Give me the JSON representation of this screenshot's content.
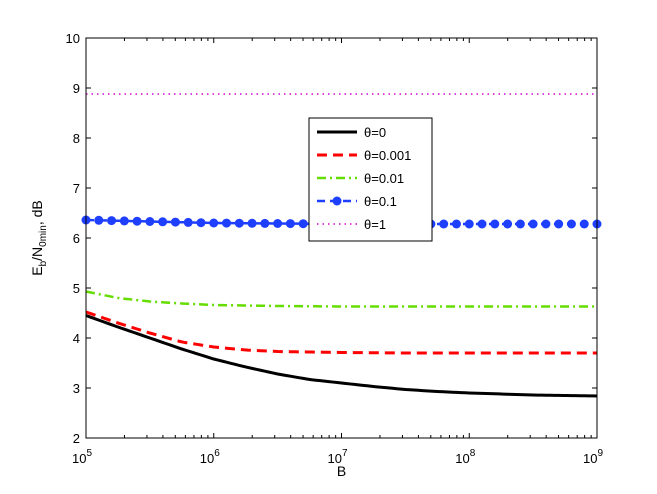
{
  "chart_data": {
    "type": "line",
    "xlabel": "B",
    "ylabel_main": "E",
    "ylabel_sub1": "b",
    "ylabel_mid": "/N",
    "ylabel_sub2": "0min",
    "ylabel_tail": ", dB",
    "xscale": "log",
    "xlim": [
      100000,
      1000000000
    ],
    "ylim": [
      2,
      10
    ],
    "x_ticks": [
      {
        "base": "10",
        "exp": "5"
      },
      {
        "base": "10",
        "exp": "6"
      },
      {
        "base": "10",
        "exp": "7"
      },
      {
        "base": "10",
        "exp": "8"
      },
      {
        "base": "10",
        "exp": "9"
      }
    ],
    "y_ticks": [
      "2",
      "3",
      "4",
      "5",
      "6",
      "7",
      "8",
      "9",
      "10"
    ],
    "grid": false,
    "legend_position": "center",
    "series": [
      {
        "name": "θ=0",
        "color": "#000000",
        "style": "solid",
        "x": [
          100000,
          177828,
          316228,
          562341,
          1000000,
          1778279,
          3162278,
          5623413,
          10000000,
          17782794,
          31622777,
          56234133,
          100000000,
          177827941,
          316227766,
          562341325,
          1000000000
        ],
        "y": [
          4.45,
          4.22,
          4.0,
          3.78,
          3.58,
          3.42,
          3.28,
          3.17,
          3.1,
          3.03,
          2.97,
          2.93,
          2.9,
          2.88,
          2.86,
          2.85,
          2.84
        ]
      },
      {
        "name": "θ=0.001",
        "color": "#ff0000",
        "style": "dashed",
        "x": [
          100000,
          177828,
          316228,
          562341,
          1000000,
          1778279,
          3162278,
          5623413,
          10000000,
          31622777,
          100000000,
          316227766,
          1000000000
        ],
        "y": [
          4.52,
          4.3,
          4.1,
          3.92,
          3.82,
          3.76,
          3.73,
          3.72,
          3.71,
          3.7,
          3.7,
          3.7,
          3.7
        ]
      },
      {
        "name": "θ=0.01",
        "color": "#66dd00",
        "style": "dashdot",
        "x": [
          100000,
          177828,
          316228,
          562341,
          1000000,
          1778279,
          3162278,
          10000000,
          100000000,
          1000000000
        ],
        "y": [
          4.93,
          4.8,
          4.73,
          4.69,
          4.66,
          4.65,
          4.64,
          4.63,
          4.63,
          4.63
        ]
      },
      {
        "name": "θ=0.1",
        "color": "#1f3fff",
        "style": "dashed-markers",
        "x": [
          100000,
          1000000,
          10000000,
          100000000,
          1000000000
        ],
        "y": [
          6.36,
          6.3,
          6.28,
          6.28,
          6.28
        ]
      },
      {
        "name": "θ=1",
        "color": "#dd44dd",
        "style": "dotted",
        "x": [
          100000,
          1000000000
        ],
        "y": [
          8.88,
          8.88
        ]
      }
    ]
  }
}
